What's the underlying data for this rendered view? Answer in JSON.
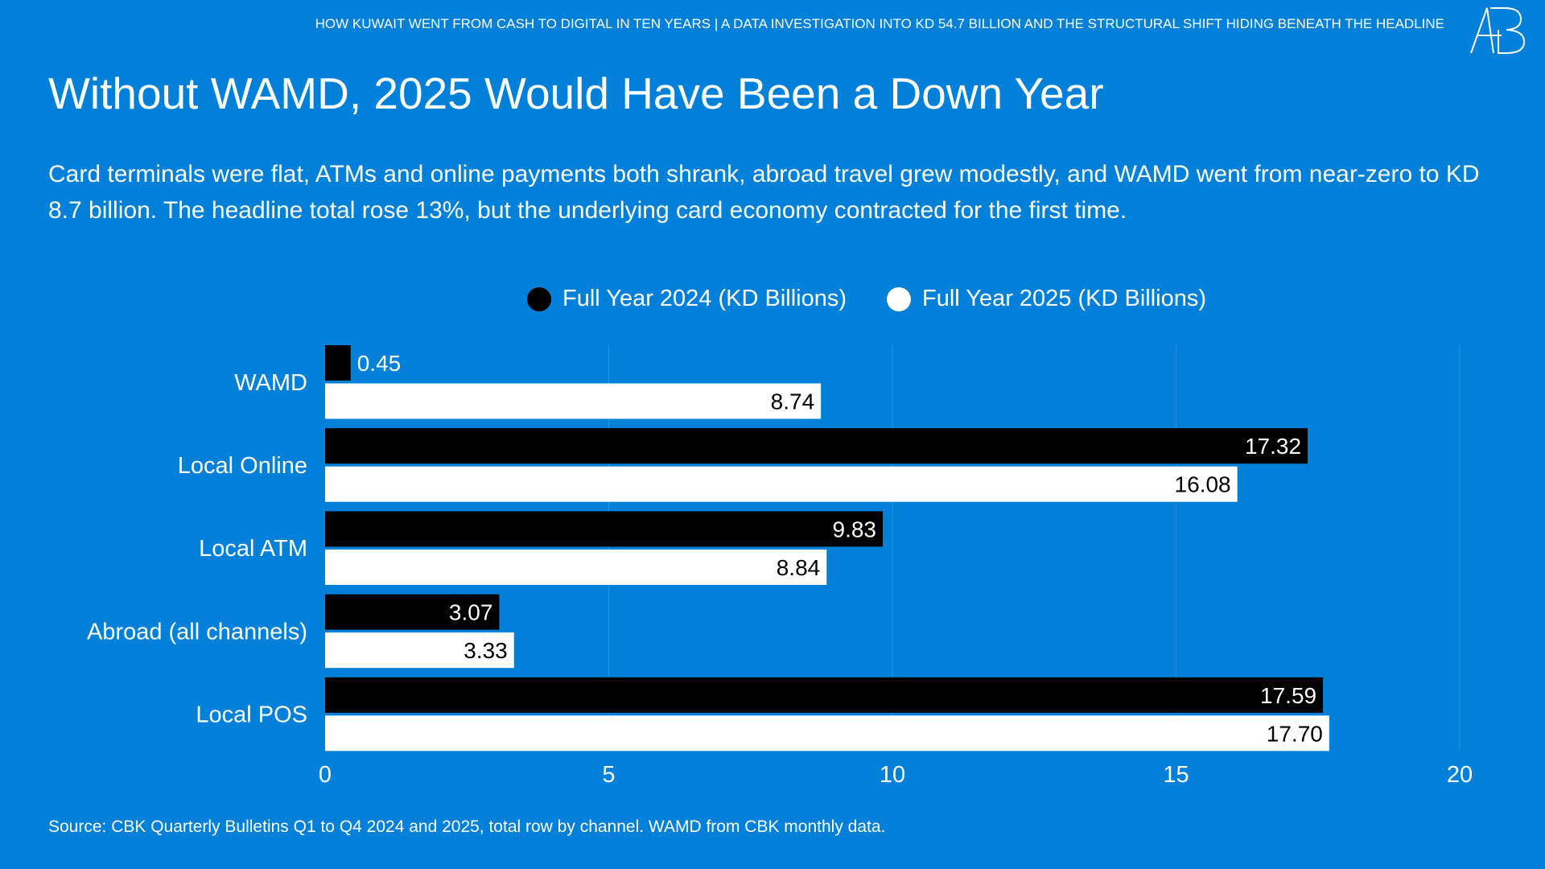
{
  "header": {
    "kicker": "HOW KUWAIT WENT FROM CASH TO DIGITAL IN TEN YEARS | A DATA INVESTIGATION INTO KD 54.7 BILLION AND THE STRUCTURAL SHIFT HIDING BENEATH THE HEADLINE",
    "logo": "AB"
  },
  "title": "Without WAMD, 2025 Would Have Been a Down Year",
  "subtitle": "Card terminals were flat, ATMs and online payments both shrank, abroad travel grew modestly, and WAMD went from near-zero to KD 8.7 billion. The headline total rose 13%, but the underlying card economy contracted for the first time.",
  "source": "Source: CBK Quarterly Bulletins Q1 to Q4 2024 and 2025, total row by channel. WAMD from CBK monthly data.",
  "colors": {
    "background": "#0080d8",
    "series_2024": "#000000",
    "series_2025": "#ffffff",
    "grid": "#2a90dc"
  },
  "chart_data": {
    "type": "bar",
    "orientation": "horizontal",
    "categories": [
      "WAMD",
      "Local Online",
      "Local ATM",
      "Abroad (all channels)",
      "Local POS"
    ],
    "series": [
      {
        "name": "Full Year 2024 (KD Billions)",
        "values": [
          0.45,
          17.32,
          9.83,
          3.07,
          17.59
        ],
        "labels": [
          "0.45",
          "17.32",
          "9.83",
          "3.07",
          "17.59"
        ]
      },
      {
        "name": "Full Year 2025 (KD Billions)",
        "values": [
          8.74,
          16.08,
          8.84,
          3.33,
          17.7
        ],
        "labels": [
          "8.74",
          "16.08",
          "8.84",
          "3.33",
          "17.70"
        ]
      }
    ],
    "xlim": [
      0,
      20
    ],
    "xticks": [
      "0",
      "5",
      "10",
      "15",
      "20"
    ],
    "grid": "vertical",
    "legend": "top-center"
  }
}
